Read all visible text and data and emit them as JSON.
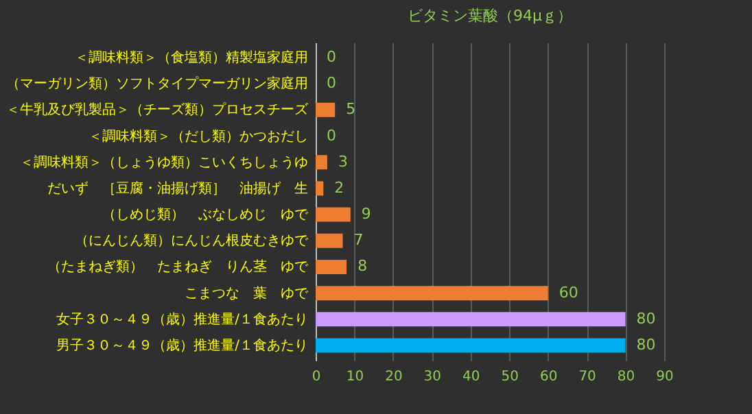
{
  "chart_data": {
    "type": "bar",
    "orientation": "horizontal",
    "title": "ビタミン葉酸（94μｇ）",
    "categories": [
      "＜調味料類＞（食塩類）精製塩家庭用",
      "（マーガリン類）ソフトタイプマーガリン家庭用",
      "＜牛乳及び乳製品＞（チーズ類）プロセスチーズ",
      "＜調味料類＞（だし類）かつおだし",
      "＜調味料類＞（しょうゆ類）こいくちしょうゆ",
      "だいず　［豆腐・油揚げ類］　油揚げ　生",
      "（しめじ類）　ぶなしめじ　ゆで",
      "（にんじん類）にんじん根皮むきゆで",
      "（たまねぎ類）　たまねぎ　りん茎　ゆで",
      "こまつな　葉　ゆで",
      "女子３０～４９（歳）推進量/１食あたり",
      "男子３０～４９（歳）推進量/１食あたり"
    ],
    "values": [
      0,
      0,
      5,
      0,
      3,
      2,
      9,
      7,
      8,
      60,
      80,
      80
    ],
    "colors": [
      "#ed7d31",
      "#ed7d31",
      "#ed7d31",
      "#ed7d31",
      "#ed7d31",
      "#ed7d31",
      "#ed7d31",
      "#ed7d31",
      "#ed7d31",
      "#ed7d31",
      "#cc99ff",
      "#00b0f0"
    ],
    "xlim": [
      0,
      90
    ],
    "xticks": [
      0,
      10,
      20,
      30,
      40,
      50,
      60,
      70,
      80,
      90
    ],
    "grid": "x",
    "data_labels": true
  }
}
